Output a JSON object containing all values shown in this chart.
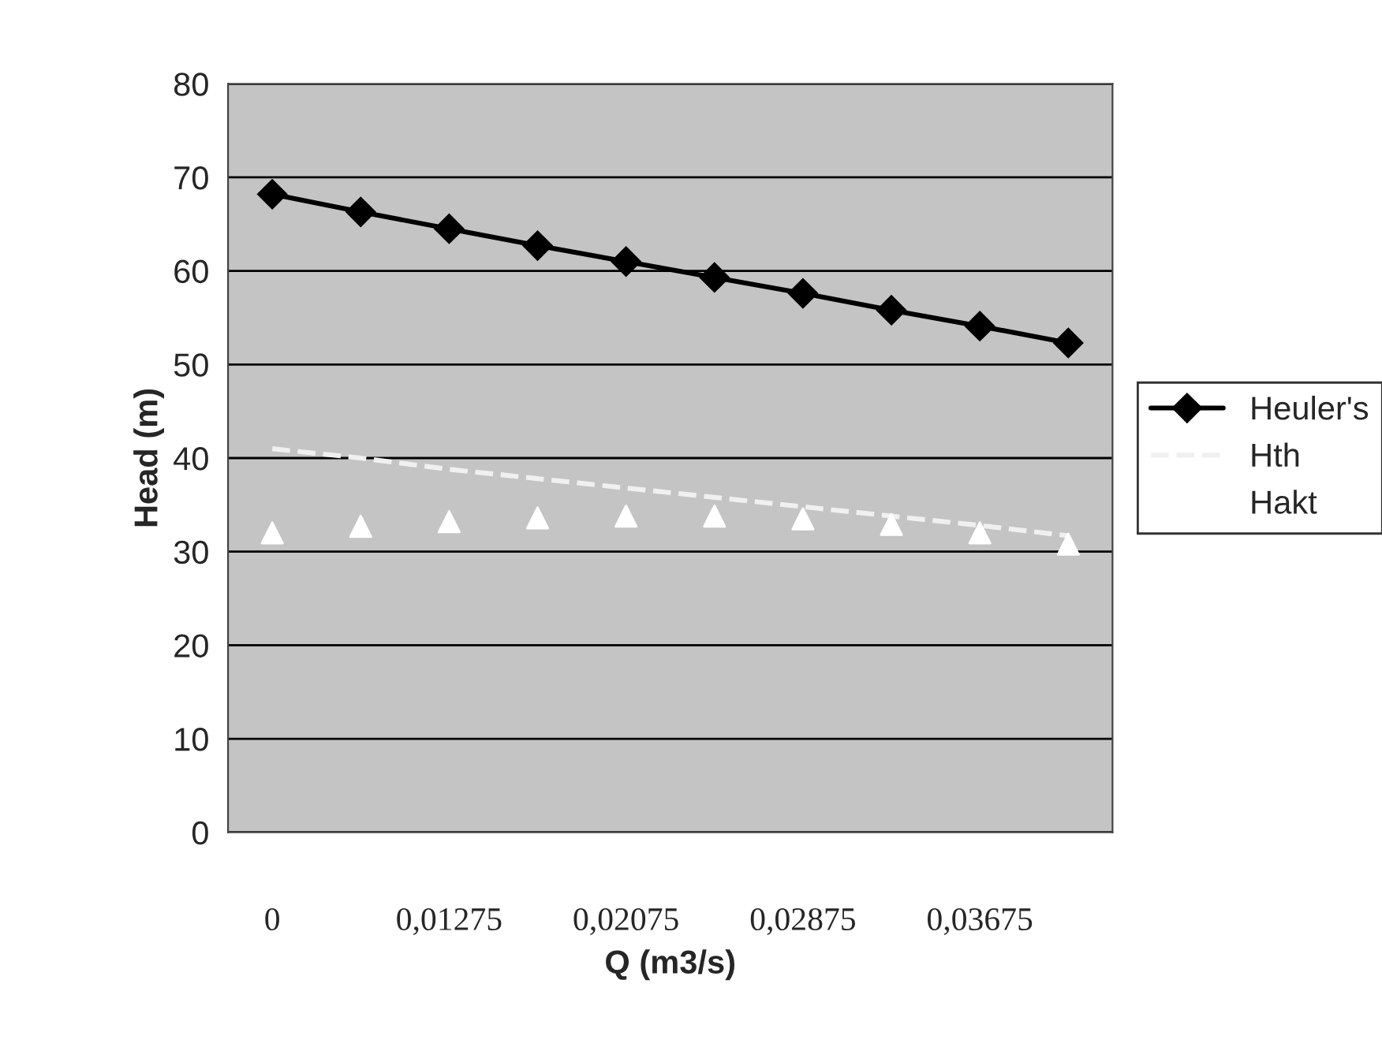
{
  "chart_data": {
    "type": "line",
    "xlabel": "Q (m3/s)",
    "ylabel": "Head (m)",
    "categories": [
      "0",
      null,
      "0,01275",
      null,
      "0,02075",
      null,
      "0,02875",
      null,
      "0,03675",
      null
    ],
    "series": [
      {
        "name": "Heuler's",
        "color": "#000000",
        "marker": "diamond",
        "line_style": "solid",
        "values": [
          68.2,
          66.3,
          64.5,
          62.7,
          61.0,
          59.3,
          57.6,
          55.8,
          54.1,
          52.3
        ]
      },
      {
        "name": "Hth",
        "color": "#f0f0f0",
        "marker": "none",
        "line_style": "dashed",
        "values": [
          41,
          40,
          38.8,
          37.8,
          36.8,
          35.8,
          34.8,
          33.8,
          32.8,
          31.7
        ]
      },
      {
        "name": "Hakt",
        "color": "#ffffff",
        "type": "scatter",
        "marker": "triangle",
        "values": [
          32,
          32.7,
          33.2,
          33.6,
          33.8,
          33.8,
          33.5,
          32.9,
          32,
          30.8
        ]
      }
    ],
    "ylim": [
      0,
      80
    ],
    "yticks": [
      0,
      10,
      20,
      30,
      40,
      50,
      60,
      70,
      80
    ],
    "grid": "y",
    "legend": "right"
  }
}
